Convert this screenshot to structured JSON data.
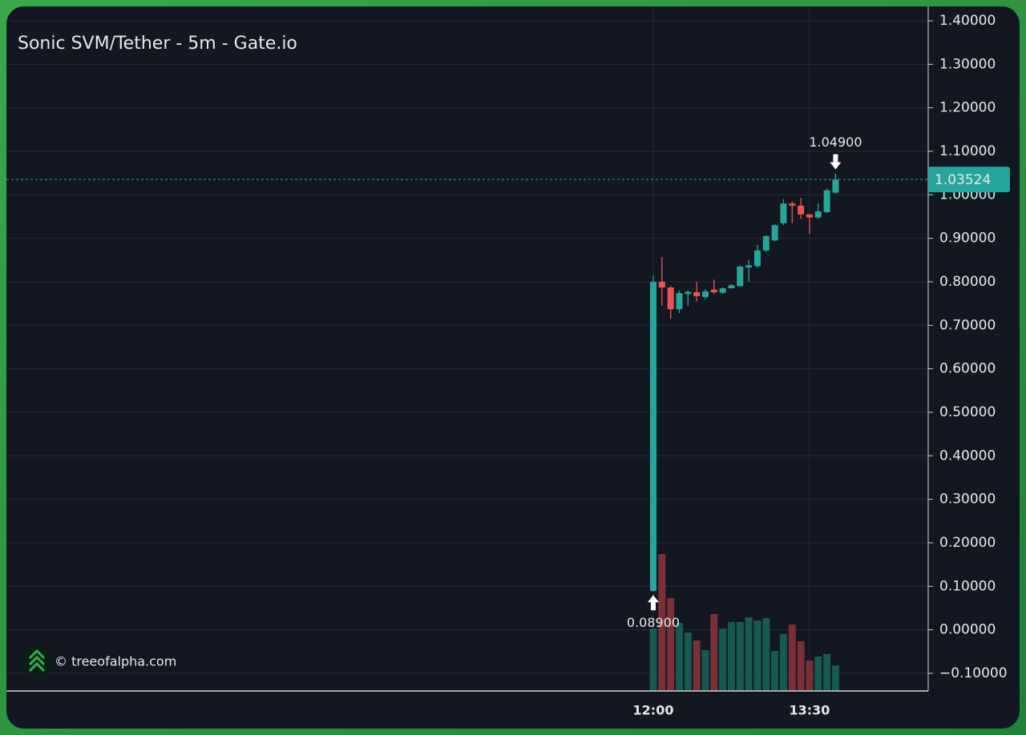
{
  "chart_data": {
    "type": "candlestick",
    "title": "Sonic SVM/Tether - 5m - Gate.io",
    "watermark": "© treeofalpha.com",
    "categories": [
      "12:00",
      null,
      null,
      null,
      null,
      null,
      null,
      null,
      null,
      null,
      null,
      null,
      null,
      null,
      null,
      null,
      null,
      null,
      "13:30",
      null,
      null,
      null
    ],
    "open": [
      0.089,
      0.8,
      0.787,
      0.737,
      0.772,
      0.776,
      0.765,
      0.782,
      0.775,
      0.785,
      0.79,
      0.833,
      0.836,
      0.872,
      0.895,
      0.935,
      0.98,
      0.975,
      0.955,
      0.948,
      0.96,
      1.005
    ],
    "high": [
      0.815,
      0.857,
      0.79,
      0.78,
      0.78,
      0.8,
      0.783,
      0.805,
      0.788,
      0.795,
      0.838,
      0.85,
      0.885,
      0.908,
      0.932,
      0.99,
      0.985,
      0.993,
      0.955,
      0.98,
      1.015,
      1.049
    ],
    "low": [
      0.089,
      0.745,
      0.715,
      0.728,
      0.745,
      0.755,
      0.76,
      0.772,
      0.772,
      0.785,
      0.79,
      0.8,
      0.832,
      0.868,
      0.893,
      0.93,
      0.935,
      0.945,
      0.91,
      0.945,
      0.958,
      1.003
    ],
    "close": [
      0.8,
      0.787,
      0.737,
      0.774,
      0.777,
      0.767,
      0.778,
      0.776,
      0.785,
      0.792,
      0.835,
      0.838,
      0.872,
      0.905,
      0.93,
      0.98,
      0.975,
      0.955,
      0.948,
      0.962,
      1.01,
      1.03524
    ],
    "volume": [
      78,
      171,
      116,
      85,
      73,
      63,
      51,
      96,
      78,
      86,
      86,
      92,
      88,
      91,
      50,
      71,
      83,
      62,
      38,
      43,
      46,
      32
    ],
    "max_label": "1.04900",
    "min_label": "0.08900",
    "last_label": "1.03524",
    "up_color": "#26a69a",
    "down_color": "#ef5350",
    "volume_up_color": "#165a53",
    "volume_down_color": "#7a3036",
    "ylim": [
      -0.1406,
      1.4331
    ],
    "yticks": [
      {
        "value": 1.4,
        "label": "1.40000"
      },
      {
        "value": 1.3,
        "label": "1.30000"
      },
      {
        "value": 1.2,
        "label": "1.20000"
      },
      {
        "value": 1.1,
        "label": "1.10000"
      },
      {
        "value": 1.0,
        "label": "1.00000"
      },
      {
        "value": 0.9,
        "label": "0.90000"
      },
      {
        "value": 0.8,
        "label": "0.80000"
      },
      {
        "value": 0.7,
        "label": "0.70000"
      },
      {
        "value": 0.6,
        "label": "0.60000"
      },
      {
        "value": 0.5,
        "label": "0.50000"
      },
      {
        "value": 0.4,
        "label": "0.40000"
      },
      {
        "value": 0.3,
        "label": "0.30000"
      },
      {
        "value": 0.2,
        "label": "0.20000"
      },
      {
        "value": 0.1,
        "label": "0.10000"
      },
      {
        "value": 0,
        "label": "0.00000"
      },
      {
        "value": -0.1,
        "label": "−0.10000"
      }
    ],
    "grid": true
  }
}
